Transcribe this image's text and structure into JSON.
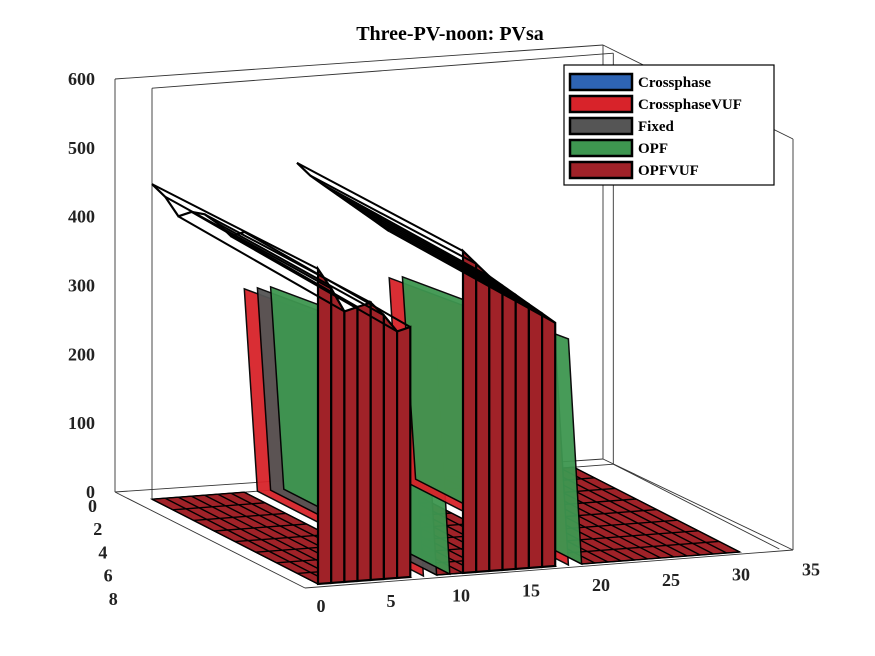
{
  "chart_data": {
    "type": "surface3d",
    "title": "Three-PV-noon: PVsa",
    "xticks": [
      "0",
      "5",
      "10",
      "15",
      "20",
      "25",
      "30",
      "35"
    ],
    "yticks": [
      "0",
      "2",
      "4",
      "6",
      "8"
    ],
    "zticks": [
      "0",
      "100",
      "200",
      "300",
      "400",
      "500",
      "600"
    ],
    "xlim": [
      0,
      35
    ],
    "ylim": [
      0,
      8
    ],
    "zlim": [
      0,
      600
    ],
    "legend_position": "top-right",
    "series": [
      {
        "name": "Crossphase",
        "color": "#2e64b4"
      },
      {
        "name": "CrossphaseVUF",
        "color": "#d8232a"
      },
      {
        "name": "Fixed",
        "color": "#555555"
      },
      {
        "name": "OPF",
        "color": "#3e9650"
      },
      {
        "name": "OPFVUF",
        "color": "#a02228"
      }
    ],
    "walls": [
      {
        "series": "OPFVUF",
        "rows": [
          0,
          8
        ],
        "x": [
          0,
          1,
          2,
          3,
          4,
          5,
          6,
          7
        ],
        "z_front": [
          460,
          430,
          395,
          400,
          405,
          385,
          360,
          365
        ],
        "z_back": [
          460,
          440,
          410,
          415,
          410,
          395,
          375,
          380
        ]
      },
      {
        "series": "OPFVUF",
        "rows": [
          0,
          8
        ],
        "x": [
          11,
          12,
          13,
          14,
          15,
          16,
          17,
          18
        ],
        "z_front": [
          470,
          450,
          430,
          415,
          400,
          385,
          370,
          355
        ],
        "z_back": [
          475,
          455,
          440,
          425,
          410,
          395,
          380,
          365
        ]
      }
    ],
    "slopes": [
      {
        "series": "CrossphaseVUF",
        "x": [
          7,
          8
        ]
      },
      {
        "series": "Fixed",
        "x": [
          8,
          9
        ]
      },
      {
        "series": "OPF",
        "x": [
          9,
          10
        ]
      },
      {
        "series": "CrossphaseVUF",
        "x": [
          18,
          19
        ]
      },
      {
        "series": "OPF",
        "x": [
          19,
          20
        ]
      }
    ],
    "floor_value": 0
  }
}
